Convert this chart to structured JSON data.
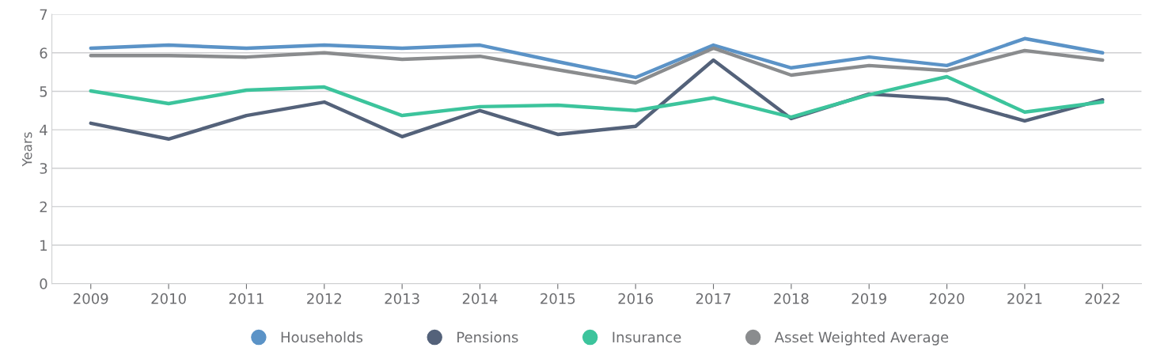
{
  "chart_data": {
    "type": "line",
    "ylabel": "Years",
    "categories": [
      "2009",
      "2010",
      "2011",
      "2012",
      "2013",
      "2014",
      "2015",
      "2016",
      "2017",
      "2018",
      "2019",
      "2020",
      "2021",
      "2022"
    ],
    "series": [
      {
        "name": "Households",
        "color": "#5b93c7",
        "values": [
          6.12,
          6.2,
          6.12,
          6.2,
          6.12,
          6.2,
          5.77,
          5.36,
          6.2,
          5.61,
          5.89,
          5.67,
          6.37,
          6.0
        ]
      },
      {
        "name": "Pensions",
        "color": "#54627a",
        "values": [
          4.17,
          3.76,
          4.37,
          4.72,
          3.82,
          4.5,
          3.88,
          4.09,
          5.81,
          4.29,
          4.93,
          4.8,
          4.23,
          4.78
        ]
      },
      {
        "name": "Insurance",
        "color": "#3cc49c",
        "values": [
          5.01,
          4.68,
          5.03,
          5.11,
          4.37,
          4.6,
          4.64,
          4.5,
          4.83,
          4.33,
          4.91,
          5.38,
          4.46,
          4.72
        ]
      },
      {
        "name": "Asset Weighted Average",
        "color": "#8a8c8e",
        "values": [
          5.93,
          5.93,
          5.89,
          6.0,
          5.83,
          5.91,
          5.56,
          5.22,
          6.12,
          5.42,
          5.67,
          5.54,
          6.06,
          5.81
        ]
      }
    ],
    "ylim": [
      0,
      7
    ],
    "yticks": [
      0,
      1,
      2,
      3,
      4,
      5,
      6,
      7
    ],
    "grid": "y",
    "legend": "bottom",
    "marker": "none",
    "line_style": "solid"
  }
}
